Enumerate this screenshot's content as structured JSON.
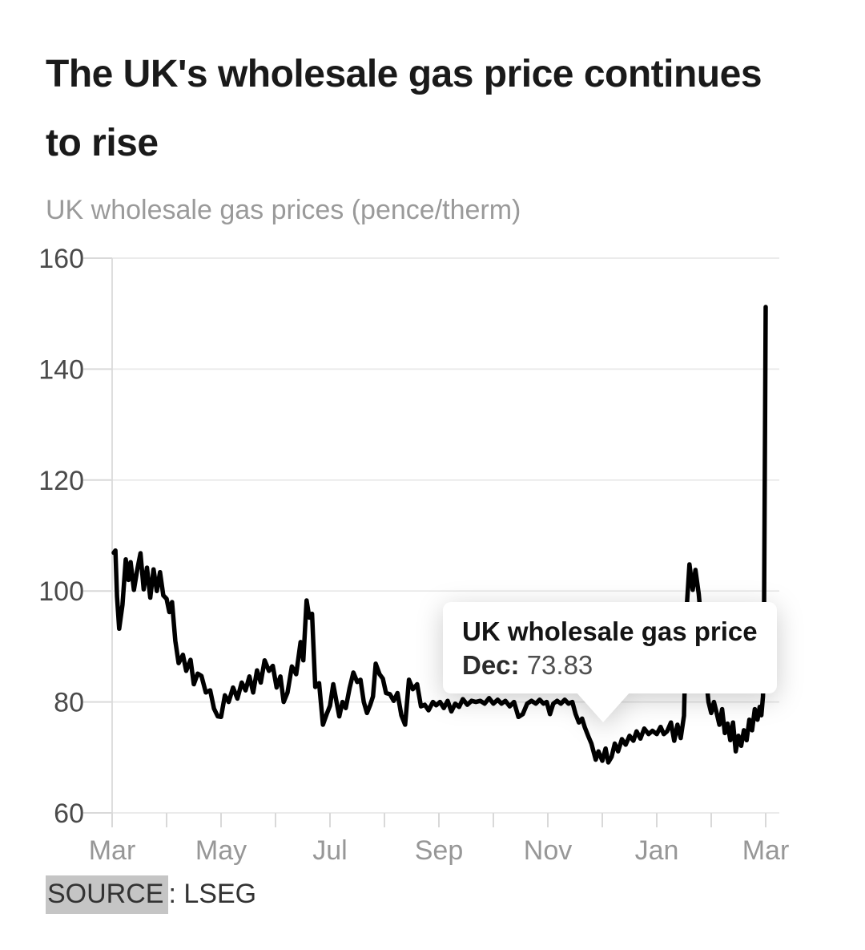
{
  "header": {
    "title": "The UK's wholesale gas price continues to rise",
    "title_lines": [
      "The UK's wholesale gas price continues",
      "to rise"
    ],
    "subtitle": "UK wholesale gas prices (pence/therm)"
  },
  "tooltip": {
    "title": "UK wholesale gas price",
    "label": "Dec:",
    "value": "73.83"
  },
  "source": {
    "label": "SOURCE",
    "rest": ": LSEG"
  },
  "chart_data": {
    "type": "line",
    "title": "UK wholesale gas prices (pence/therm)",
    "xlabel": "",
    "ylabel": "pence/therm",
    "ylim": [
      60,
      160
    ],
    "y_ticks": [
      60,
      80,
      100,
      120,
      140,
      160
    ],
    "x_tick_labels": [
      "Mar",
      "May",
      "Jul",
      "Sep",
      "Nov",
      "Jan",
      "Mar"
    ],
    "x_minor_ticks_every_month": true,
    "x_months_total": 13,
    "grid": "horizontal",
    "legend": "none",
    "line_color": "#000000",
    "grid_color": "#e8e8e8",
    "axis_color": "#d9d9d9",
    "y_label_color": "#4a4a4a",
    "x_label_color": "#979797",
    "highlight": {
      "month_label": "Dec",
      "value": 73.83
    },
    "series": [
      {
        "name": "UK wholesale gas price",
        "points_format": "[months_since_march, pence_per_therm]",
        "points": [
          [
            0.03,
            106.9
          ],
          [
            0.06,
            107.3
          ],
          [
            0.09,
            99.0
          ],
          [
            0.13,
            93.2
          ],
          [
            0.19,
            97.5
          ],
          [
            0.25,
            105.7
          ],
          [
            0.3,
            102.0
          ],
          [
            0.34,
            105.2
          ],
          [
            0.4,
            100.2
          ],
          [
            0.46,
            103.8
          ],
          [
            0.52,
            106.8
          ],
          [
            0.58,
            100.3
          ],
          [
            0.64,
            104.2
          ],
          [
            0.7,
            98.8
          ],
          [
            0.76,
            103.9
          ],
          [
            0.82,
            100.0
          ],
          [
            0.88,
            103.4
          ],
          [
            0.94,
            99.2
          ],
          [
            1.0,
            98.6
          ],
          [
            1.05,
            96.2
          ],
          [
            1.1,
            98.0
          ],
          [
            1.16,
            91.0
          ],
          [
            1.22,
            87.0
          ],
          [
            1.3,
            88.5
          ],
          [
            1.36,
            85.6
          ],
          [
            1.44,
            87.6
          ],
          [
            1.5,
            83.2
          ],
          [
            1.57,
            85.1
          ],
          [
            1.64,
            84.7
          ],
          [
            1.72,
            81.7
          ],
          [
            1.8,
            82.1
          ],
          [
            1.87,
            78.8
          ],
          [
            1.94,
            77.4
          ],
          [
            2.0,
            77.3
          ],
          [
            2.07,
            81.2
          ],
          [
            2.14,
            80.0
          ],
          [
            2.22,
            82.6
          ],
          [
            2.3,
            80.6
          ],
          [
            2.38,
            83.5
          ],
          [
            2.45,
            82.1
          ],
          [
            2.52,
            84.6
          ],
          [
            2.59,
            81.7
          ],
          [
            2.66,
            85.7
          ],
          [
            2.73,
            83.5
          ],
          [
            2.8,
            87.5
          ],
          [
            2.88,
            85.6
          ],
          [
            2.95,
            86.5
          ],
          [
            3.02,
            82.6
          ],
          [
            3.09,
            84.6
          ],
          [
            3.15,
            80.0
          ],
          [
            3.22,
            81.7
          ],
          [
            3.3,
            86.4
          ],
          [
            3.38,
            85.0
          ],
          [
            3.46,
            90.8
          ],
          [
            3.51,
            87.5
          ],
          [
            3.57,
            98.3
          ],
          [
            3.62,
            95.2
          ],
          [
            3.67,
            95.9
          ],
          [
            3.73,
            82.7
          ],
          [
            3.8,
            83.4
          ],
          [
            3.87,
            75.9
          ],
          [
            3.94,
            77.8
          ],
          [
            4.0,
            79.3
          ],
          [
            4.06,
            83.2
          ],
          [
            4.12,
            80.0
          ],
          [
            4.17,
            77.4
          ],
          [
            4.23,
            80.0
          ],
          [
            4.29,
            78.9
          ],
          [
            4.36,
            82.5
          ],
          [
            4.43,
            85.3
          ],
          [
            4.5,
            83.6
          ],
          [
            4.56,
            84.0
          ],
          [
            4.62,
            80.0
          ],
          [
            4.68,
            78.0
          ],
          [
            4.74,
            79.5
          ],
          [
            4.79,
            81.0
          ],
          [
            4.84,
            86.9
          ],
          [
            4.91,
            85.0
          ],
          [
            4.97,
            84.2
          ],
          [
            5.03,
            81.6
          ],
          [
            5.1,
            81.4
          ],
          [
            5.17,
            80.2
          ],
          [
            5.24,
            81.6
          ],
          [
            5.31,
            77.6
          ],
          [
            5.38,
            75.9
          ],
          [
            5.45,
            84.0
          ],
          [
            5.52,
            82.3
          ],
          [
            5.6,
            83.2
          ],
          [
            5.67,
            79.2
          ],
          [
            5.74,
            79.5
          ],
          [
            5.81,
            78.5
          ],
          [
            5.89,
            80.0
          ],
          [
            5.95,
            79.4
          ],
          [
            6.02,
            80.0
          ],
          [
            6.09,
            78.9
          ],
          [
            6.16,
            80.2
          ],
          [
            6.23,
            78.3
          ],
          [
            6.3,
            79.7
          ],
          [
            6.37,
            79.1
          ],
          [
            6.44,
            80.5
          ],
          [
            6.52,
            79.5
          ],
          [
            6.6,
            80.2
          ],
          [
            6.68,
            80.0
          ],
          [
            6.76,
            80.2
          ],
          [
            6.84,
            79.7
          ],
          [
            6.92,
            80.7
          ],
          [
            7.0,
            79.7
          ],
          [
            7.08,
            80.4
          ],
          [
            7.15,
            79.7
          ],
          [
            7.22,
            80.2
          ],
          [
            7.3,
            79.2
          ],
          [
            7.38,
            80.0
          ],
          [
            7.46,
            77.3
          ],
          [
            7.54,
            77.8
          ],
          [
            7.62,
            79.7
          ],
          [
            7.7,
            80.2
          ],
          [
            7.78,
            79.7
          ],
          [
            7.85,
            80.4
          ],
          [
            7.92,
            79.7
          ],
          [
            7.98,
            80.0
          ],
          [
            8.04,
            77.8
          ],
          [
            8.1,
            79.7
          ],
          [
            8.17,
            80.2
          ],
          [
            8.24,
            79.7
          ],
          [
            8.31,
            80.4
          ],
          [
            8.38,
            79.7
          ],
          [
            8.45,
            80.0
          ],
          [
            8.51,
            77.8
          ],
          [
            8.57,
            76.3
          ],
          [
            8.63,
            77.0
          ],
          [
            8.68,
            75.4
          ],
          [
            8.74,
            73.9
          ],
          [
            8.8,
            72.5
          ],
          [
            8.88,
            69.6
          ],
          [
            8.93,
            71.1
          ],
          [
            9.0,
            69.4
          ],
          [
            9.06,
            71.6
          ],
          [
            9.11,
            69.1
          ],
          [
            9.17,
            70.1
          ],
          [
            9.23,
            72.5
          ],
          [
            9.29,
            71.1
          ],
          [
            9.36,
            73.3
          ],
          [
            9.43,
            72.3
          ],
          [
            9.5,
            73.9
          ],
          [
            9.57,
            73.0
          ],
          [
            9.63,
            74.7
          ],
          [
            9.7,
            73.4
          ],
          [
            9.77,
            75.2
          ],
          [
            9.85,
            74.2
          ],
          [
            9.92,
            74.8
          ],
          [
            10.0,
            74.2
          ],
          [
            10.07,
            75.5
          ],
          [
            10.13,
            74.2
          ],
          [
            10.19,
            74.7
          ],
          [
            10.26,
            76.3
          ],
          [
            10.32,
            73.0
          ],
          [
            10.38,
            75.9
          ],
          [
            10.44,
            73.5
          ],
          [
            10.5,
            77.5
          ],
          [
            10.55,
            97.0
          ],
          [
            10.6,
            104.8
          ],
          [
            10.66,
            100.2
          ],
          [
            10.71,
            103.8
          ],
          [
            10.77,
            99.5
          ],
          [
            10.83,
            93.0
          ],
          [
            10.89,
            86.0
          ],
          [
            10.95,
            80.0
          ],
          [
            11.0,
            78.0
          ],
          [
            11.05,
            80.0
          ],
          [
            11.1,
            78.0
          ],
          [
            11.15,
            75.9
          ],
          [
            11.2,
            78.7
          ],
          [
            11.25,
            74.4
          ],
          [
            11.3,
            76.1
          ],
          [
            11.35,
            73.1
          ],
          [
            11.4,
            76.3
          ],
          [
            11.45,
            71.1
          ],
          [
            11.5,
            73.9
          ],
          [
            11.55,
            72.1
          ],
          [
            11.6,
            74.9
          ],
          [
            11.65,
            73.1
          ],
          [
            11.7,
            76.8
          ],
          [
            11.75,
            74.9
          ],
          [
            11.8,
            78.7
          ],
          [
            11.85,
            76.8
          ],
          [
            11.89,
            79.1
          ],
          [
            11.92,
            77.6
          ],
          [
            11.95,
            81.0
          ],
          [
            11.97,
            97.0
          ],
          [
            12.0,
            151.2
          ]
        ]
      }
    ]
  }
}
